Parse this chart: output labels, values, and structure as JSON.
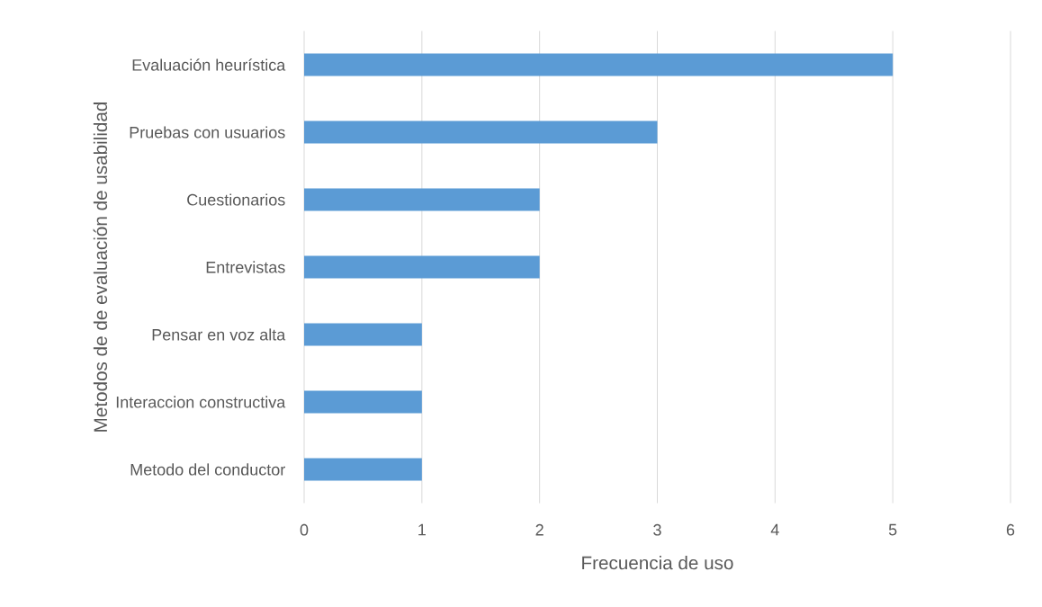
{
  "chart_data": {
    "type": "bar",
    "orientation": "horizontal",
    "xlabel": "Frecuencia de uso",
    "ylabel": "Metodos de de evaluación de usabilidad",
    "categories": [
      "Evaluación heurística",
      "Pruebas con usuarios",
      "Cuestionarios",
      "Entrevistas",
      "Pensar en voz alta",
      "Interaccion constructiva",
      "Metodo del conductor"
    ],
    "values": [
      5,
      3,
      2,
      2,
      1,
      1,
      1
    ],
    "color": "#5b9bd5",
    "xlim": [
      0,
      6
    ],
    "xticks": [
      0,
      1,
      2,
      3,
      4,
      5,
      6
    ],
    "grid": "x"
  }
}
